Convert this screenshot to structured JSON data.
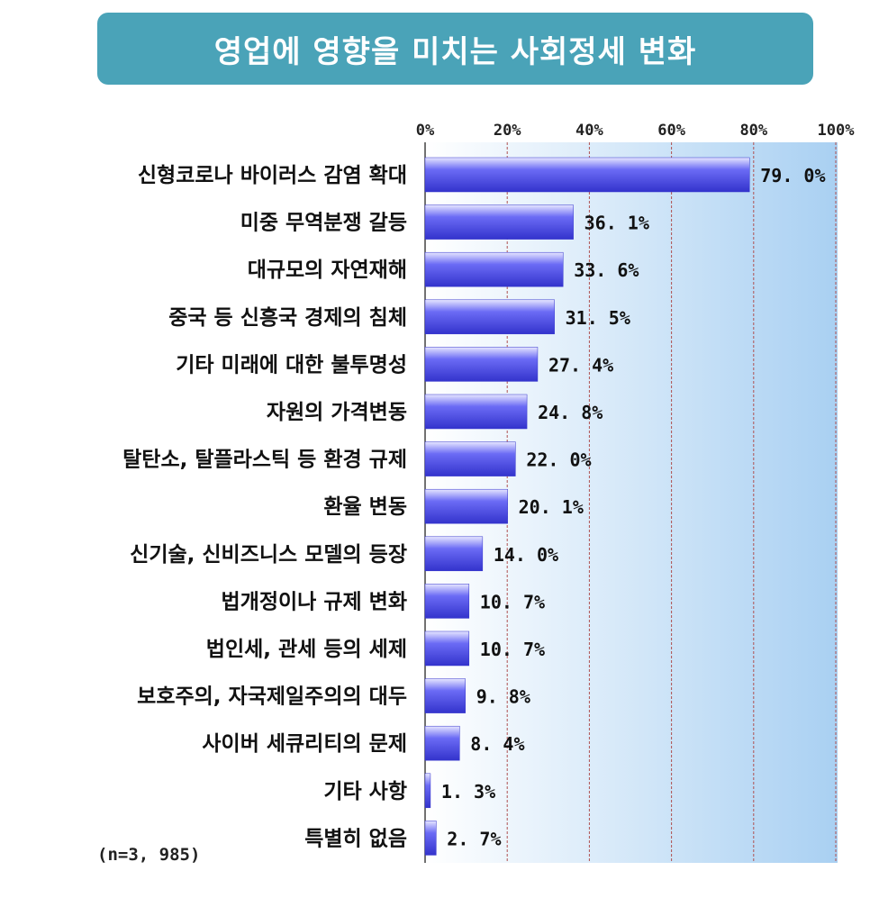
{
  "title": "영업에 영향을 미치는 사회정세 변화",
  "sample_note": "(n=3, 985)",
  "colors": {
    "title_bg": "#4aa3b8",
    "bar": "#6b6bf5",
    "bar_dark": "#3333cc",
    "grid": "#b05050",
    "plot_bg_light": "#ffffff",
    "plot_bg_dark": "#a9d0f2"
  },
  "chart_data": {
    "type": "bar",
    "orientation": "horizontal",
    "xlim": [
      0,
      100
    ],
    "ticks": [
      "0%",
      "20%",
      "40%",
      "60%",
      "80%",
      "100%"
    ],
    "categories": [
      "신형코로나 바이러스 감염 확대",
      "미중 무역분쟁 갈등",
      "대규모의 자연재해",
      "중국 등 신흥국 경제의 침체",
      "기타 미래에 대한 불투명성",
      "자원의 가격변동",
      "탈탄소, 탈플라스틱 등 환경 규제",
      "환율 변동",
      "신기술, 신비즈니스 모델의 등장",
      "법개정이나 규제 변화",
      "법인세, 관세 등의 세제",
      "보호주의, 자국제일주의의 대두",
      "사이버 세큐리티의 문제",
      "기타 사항",
      "특별히 없음"
    ],
    "values": [
      79.0,
      36.1,
      33.6,
      31.5,
      27.4,
      24.8,
      22.0,
      20.1,
      14.0,
      10.7,
      10.7,
      9.8,
      8.4,
      1.3,
      2.7
    ],
    "value_labels": [
      "79. 0%",
      "36. 1%",
      "33. 6%",
      "31. 5%",
      "27. 4%",
      "24. 8%",
      "22. 0%",
      "20. 1%",
      "14. 0%",
      "10. 7%",
      "10. 7%",
      "9. 8%",
      "8. 4%",
      "1. 3%",
      "2. 7%"
    ],
    "grid": true,
    "legend": "none"
  }
}
